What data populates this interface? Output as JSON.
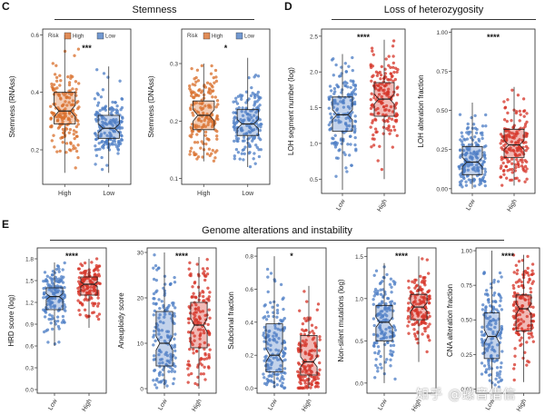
{
  "panels": {
    "c": "C",
    "d": "D",
    "e": "E"
  },
  "sections": {
    "stemness": "Stemness",
    "loh": "Loss of heterozygosity",
    "genome": "Genome alterations and instability"
  },
  "legend": {
    "title": "Risk",
    "items": [
      "High",
      "Low"
    ]
  },
  "colors": {
    "high": "#d6362a",
    "high_c": "#d9702e",
    "low": "#4f7fc6",
    "grid": "#222222",
    "box_line": "#1f1f1f"
  },
  "watermark": "知乎 @螺音借信",
  "chart_data": [
    {
      "id": "rnass",
      "type": "box",
      "title": "",
      "ylabel": "Stemness (RNAss)",
      "categories": [
        "High",
        "Low"
      ],
      "ylim": [
        0.08,
        0.62
      ],
      "yticks": [
        0.2,
        0.4,
        0.6
      ],
      "ytick_labels": [
        "0.2",
        "0.4",
        "0.6"
      ],
      "significance": "***",
      "legend": true,
      "series": [
        {
          "name": "High",
          "color": "high_c",
          "q1": 0.29,
          "median": 0.335,
          "q3": 0.4,
          "min": 0.12,
          "max": 0.6,
          "notch": 0.02
        },
        {
          "name": "Low",
          "color": "low",
          "q1": 0.24,
          "median": 0.275,
          "q3": 0.32,
          "min": 0.12,
          "max": 0.49,
          "notch": 0.015
        }
      ]
    },
    {
      "id": "dnass",
      "type": "box",
      "title": "",
      "ylabel": "Stemness (DNAss)",
      "categories": [
        "High",
        "Low"
      ],
      "ylim": [
        0.09,
        0.36
      ],
      "yticks": [
        0.1,
        0.2,
        0.3
      ],
      "ytick_labels": [
        "0.1",
        "0.2",
        "0.3"
      ],
      "significance": "*",
      "legend": true,
      "series": [
        {
          "name": "High",
          "color": "high_c",
          "q1": 0.185,
          "median": 0.21,
          "q3": 0.235,
          "min": 0.13,
          "max": 0.3,
          "notch": 0.01
        },
        {
          "name": "Low",
          "color": "low",
          "q1": 0.175,
          "median": 0.195,
          "q3": 0.22,
          "min": 0.12,
          "max": 0.31,
          "notch": 0.008
        }
      ]
    },
    {
      "id": "loh_num",
      "type": "box",
      "title": "",
      "ylabel": "LOH segment number (log)",
      "categories": [
        "Low",
        "High"
      ],
      "ylim": [
        0.3,
        2.6
      ],
      "yticks": [
        0.5,
        1.0,
        1.5,
        2.0,
        2.5
      ],
      "ytick_labels": [
        "0.5",
        "1.0",
        "1.5",
        "2.0",
        "2.5"
      ],
      "significance": "****",
      "legend": false,
      "series": [
        {
          "name": "Low",
          "color": "low",
          "q1": 1.17,
          "median": 1.4,
          "q3": 1.65,
          "min": 0.35,
          "max": 2.25,
          "notch": 0.07
        },
        {
          "name": "High",
          "color": "high",
          "q1": 1.38,
          "median": 1.62,
          "q3": 1.85,
          "min": 0.5,
          "max": 2.45,
          "notch": 0.07
        }
      ]
    },
    {
      "id": "loh_frac",
      "type": "box",
      "title": "",
      "ylabel": "LOH alteration fraction",
      "categories": [
        "Low",
        "High"
      ],
      "ylim": [
        -0.03,
        1.02
      ],
      "yticks": [
        0.0,
        0.25,
        0.5,
        0.75,
        1.0
      ],
      "ytick_labels": [
        "0.00",
        "0.25",
        "0.50",
        "0.75",
        "1.00"
      ],
      "significance": "****",
      "legend": false,
      "series": [
        {
          "name": "Low",
          "color": "low",
          "q1": 0.09,
          "median": 0.17,
          "q3": 0.27,
          "min": 0.0,
          "max": 0.55,
          "notch": 0.03
        },
        {
          "name": "High",
          "color": "high",
          "q1": 0.2,
          "median": 0.28,
          "q3": 0.38,
          "min": 0.02,
          "max": 0.65,
          "notch": 0.03
        }
      ]
    },
    {
      "id": "hrd",
      "type": "box",
      "title": "",
      "ylabel": "HRD score (log)",
      "categories": [
        "Low",
        "High"
      ],
      "ylim": [
        -0.05,
        1.95
      ],
      "yticks": [
        0.0,
        0.3,
        0.6,
        0.9,
        1.2,
        1.5,
        1.8
      ],
      "ytick_labels": [
        "0.0",
        "0.3",
        "0.6",
        "0.9",
        "1.2",
        "1.5",
        "1.8"
      ],
      "significance": "****",
      "legend": false,
      "series": [
        {
          "name": "Low",
          "color": "low",
          "q1": 1.1,
          "median": 1.28,
          "q3": 1.4,
          "min": 0.6,
          "max": 1.75,
          "notch": 0.04
        },
        {
          "name": "High",
          "color": "high",
          "q1": 1.3,
          "median": 1.45,
          "q3": 1.55,
          "min": 0.85,
          "max": 1.8,
          "notch": 0.03
        }
      ]
    },
    {
      "id": "aneuploidy",
      "type": "box",
      "title": "",
      "ylabel": "Aneuploidy score",
      "categories": [
        "Low",
        "High"
      ],
      "ylim": [
        -1,
        31
      ],
      "yticks": [
        0,
        10,
        20,
        30
      ],
      "ytick_labels": [
        "0",
        "10",
        "20",
        "30"
      ],
      "significance": "****",
      "legend": false,
      "series": [
        {
          "name": "Low",
          "color": "low",
          "q1": 5,
          "median": 10,
          "q3": 17,
          "min": 0,
          "max": 30,
          "notch": 1.5
        },
        {
          "name": "High",
          "color": "high",
          "q1": 9,
          "median": 14,
          "q3": 19,
          "min": 0,
          "max": 29,
          "notch": 1.5
        }
      ]
    },
    {
      "id": "subclonal",
      "type": "box",
      "title": "",
      "ylabel": "Subclonal fraction",
      "categories": [
        "Low",
        "High"
      ],
      "ylim": [
        -0.03,
        0.85
      ],
      "yticks": [
        0.0,
        0.2,
        0.4,
        0.6,
        0.8
      ],
      "ytick_labels": [
        "0.0",
        "0.2",
        "0.4",
        "0.6",
        "0.8"
      ],
      "significance": "*",
      "legend": false,
      "series": [
        {
          "name": "Low",
          "color": "low",
          "q1": 0.1,
          "median": 0.2,
          "q3": 0.39,
          "min": 0.0,
          "max": 0.8,
          "notch": 0.04
        },
        {
          "name": "High",
          "color": "high",
          "q1": 0.08,
          "median": 0.16,
          "q3": 0.32,
          "min": 0.0,
          "max": 0.62,
          "notch": 0.03
        }
      ]
    },
    {
      "id": "nonsilent",
      "type": "box",
      "title": "",
      "ylabel": "Non-silent mutations (log)",
      "categories": [
        "Low",
        "High"
      ],
      "ylim": [
        -0.12,
        1.6
      ],
      "yticks": [
        0.0,
        0.5,
        1.0,
        1.5
      ],
      "ytick_labels": [
        "0.0",
        "0.5",
        "1.0",
        "1.5"
      ],
      "significance": "****",
      "legend": false,
      "series": [
        {
          "name": "Low",
          "color": "low",
          "q1": 0.5,
          "median": 0.72,
          "q3": 0.92,
          "min": 0.0,
          "max": 1.42,
          "notch": 0.06
        },
        {
          "name": "High",
          "color": "high",
          "q1": 0.75,
          "median": 0.9,
          "q3": 1.05,
          "min": 0.25,
          "max": 1.5,
          "notch": 0.05
        }
      ]
    },
    {
      "id": "cna",
      "type": "box",
      "title": "",
      "ylabel": "CNA alteration fraction",
      "categories": [
        "Low",
        "High"
      ],
      "ylim": [
        -0.03,
        1.02
      ],
      "yticks": [
        0.0,
        0.25,
        0.5,
        0.75,
        1.0
      ],
      "ytick_labels": [
        "0.00",
        "0.25",
        "0.50",
        "0.75",
        "1.00"
      ],
      "significance": "****",
      "legend": false,
      "series": [
        {
          "name": "Low",
          "color": "low",
          "q1": 0.22,
          "median": 0.38,
          "q3": 0.55,
          "min": 0.0,
          "max": 1.0,
          "notch": 0.05
        },
        {
          "name": "High",
          "color": "high",
          "q1": 0.42,
          "median": 0.58,
          "q3": 0.68,
          "min": 0.05,
          "max": 0.97,
          "notch": 0.04
        }
      ]
    }
  ]
}
